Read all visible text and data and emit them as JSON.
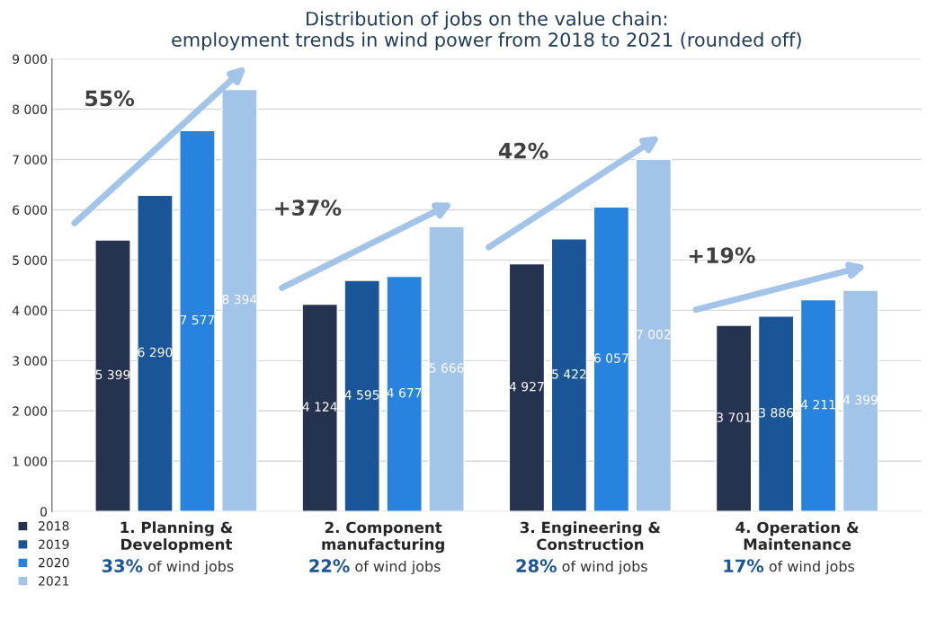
{
  "chart_data": {
    "type": "bar",
    "title": "Distribution of jobs on the value chain:\nemployment trends in wind power from 2018 to 2021 (rounded off)",
    "categories": [
      "1. Planning &\nDevelopment",
      "2. Component\nmanufacturing",
      "3. Engineering &\nConstruction",
      "4. Operation &\nMaintenance"
    ],
    "series": [
      {
        "name": "2018",
        "color": "#253350",
        "values": [
          5399,
          4124,
          4927,
          3701
        ],
        "value_labels": [
          "5 399",
          "4 124",
          "4 927",
          "3 701"
        ]
      },
      {
        "name": "2019",
        "color": "#1a5597",
        "values": [
          6290,
          4595,
          5422,
          3886
        ],
        "value_labels": [
          "6 290",
          "4 595",
          "5 422",
          "3 886"
        ]
      },
      {
        "name": "2020",
        "color": "#2783de",
        "values": [
          7577,
          4677,
          6057,
          4211
        ],
        "value_labels": [
          "7 577",
          "4 677",
          "6 057",
          "4 211"
        ]
      },
      {
        "name": "2021",
        "color": "#a3c4e9",
        "values": [
          8394,
          5666,
          7002,
          4399
        ],
        "value_labels": [
          "8 394",
          "5 666",
          "7 002",
          "4 399"
        ]
      }
    ],
    "ylim": [
      0,
      9000
    ],
    "yticks": [
      0,
      {
        "value": 1000,
        "label": "1 000"
      },
      {
        "value": 2000,
        "label": "2 000"
      },
      {
        "value": 3000,
        "label": "3 000"
      },
      {
        "value": 4000,
        "label": "4 000"
      },
      {
        "value": 5000,
        "label": "5 000"
      },
      {
        "value": 6000,
        "label": "6 000"
      },
      {
        "value": 7000,
        "label": "7 000"
      },
      {
        "value": 8000,
        "label": "8 000"
      },
      {
        "value": 9000,
        "label": "9 000"
      }
    ],
    "annotations": [
      "55%",
      "+37%",
      "42%",
      "+19%",
      "33% of wind jobs",
      "22% of wind jobs",
      "28% of wind jobs",
      "17% of wind jobs"
    ],
    "grid": "y",
    "legend": "bottom left"
  }
}
